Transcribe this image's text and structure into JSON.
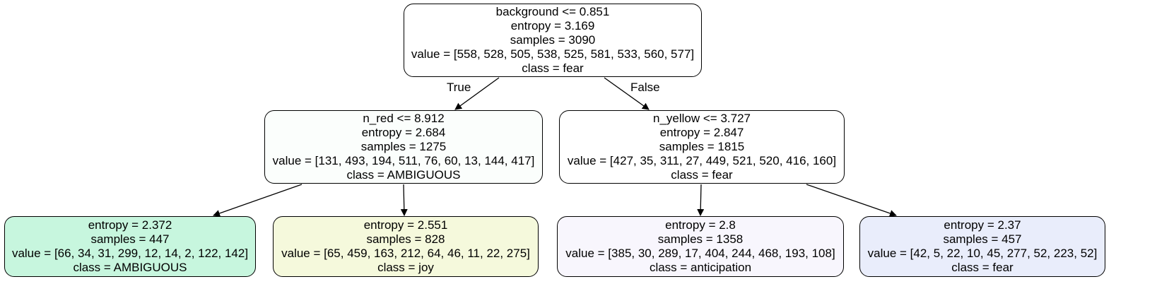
{
  "tree": {
    "nodes": [
      {
        "id": "root",
        "split": "background <= 0.851",
        "entropy": "entropy = 3.169",
        "samples": "samples = 3090",
        "value": "value = [558, 528, 505, 538, 525, 581, 533, 560, 577]",
        "class": "class = fear",
        "fill": "#ffffff"
      },
      {
        "id": "left",
        "split": "n_red <= 8.912",
        "entropy": "entropy = 2.684",
        "samples": "samples = 1275",
        "value": "value = [131, 493, 194, 511, 76, 60, 13, 144, 417]",
        "class": "class = AMBIGUOUS",
        "fill": "#fbfefc"
      },
      {
        "id": "right",
        "split": "n_yellow <= 3.727",
        "entropy": "entropy = 2.847",
        "samples": "samples = 1815",
        "value": "value = [427, 35, 311, 27, 449, 521, 520, 416, 160]",
        "class": "class = fear",
        "fill": "#ffffff"
      },
      {
        "id": "leaf1",
        "entropy": "entropy = 2.372",
        "samples": "samples = 447",
        "value": "value = [66, 34, 31, 299, 12, 14, 2, 122, 142]",
        "class": "class = AMBIGUOUS",
        "fill": "#c7f6de"
      },
      {
        "id": "leaf2",
        "entropy": "entropy = 2.551",
        "samples": "samples = 828",
        "value": "value = [65, 459, 163, 212, 64, 46, 11, 22, 275]",
        "class": "class = joy",
        "fill": "#f5f9dc"
      },
      {
        "id": "leaf3",
        "entropy": "entropy = 2.8",
        "samples": "samples = 1358",
        "value": "value = [385, 30, 289, 17, 404, 244, 468, 193, 108]",
        "class": "class = anticipation",
        "fill": "#f8f6fd"
      },
      {
        "id": "leaf4",
        "entropy": "entropy = 2.37",
        "samples": "samples = 457",
        "value": "value = [42, 5, 22, 10, 45, 277, 52, 223, 52]",
        "class": "class = fear",
        "fill": "#e9edfb"
      }
    ],
    "edge_labels": {
      "true": "True",
      "false": "False"
    },
    "colors": {
      "stroke": "#000000",
      "background": "#ffffff"
    }
  }
}
